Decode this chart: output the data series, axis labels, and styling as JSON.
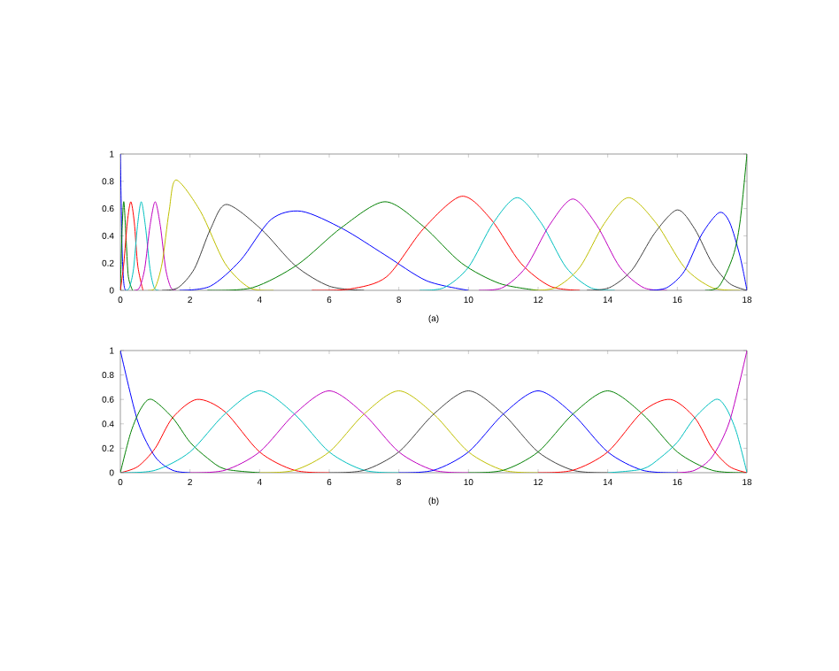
{
  "chart_data": [
    {
      "type": "line",
      "xlabel": "(a)",
      "xlim": [
        0,
        18
      ],
      "ylim": [
        0,
        1
      ],
      "xticks": [
        0,
        2,
        4,
        6,
        8,
        10,
        12,
        14,
        16,
        18
      ],
      "yticks": [
        0,
        0.2,
        0.4,
        0.6,
        0.8,
        1
      ],
      "series": [
        {
          "color": "#0000ff",
          "x": [
            0,
            0.05,
            0.1,
            0.15
          ],
          "values": [
            1,
            0.3,
            0.05,
            0
          ]
        },
        {
          "color": "#008000",
          "x": [
            0,
            0.05,
            0.1,
            0.17,
            0.23,
            0.35
          ],
          "values": [
            0,
            0.45,
            0.65,
            0.35,
            0.1,
            0
          ]
        },
        {
          "color": "#ff0000",
          "x": [
            0,
            0.1,
            0.2,
            0.3,
            0.4,
            0.5,
            0.65
          ],
          "values": [
            0,
            0.2,
            0.5,
            0.65,
            0.5,
            0.18,
            0
          ]
        },
        {
          "color": "#00bfbf",
          "x": [
            0.15,
            0.26,
            0.38,
            0.49,
            0.6,
            0.72,
            0.85,
            0.97,
            1.1
          ],
          "values": [
            0,
            0.02,
            0.16,
            0.47,
            0.65,
            0.47,
            0.16,
            0.02,
            0
          ]
        },
        {
          "color": "#bf00bf",
          "x": [
            0.4,
            0.55,
            0.7,
            0.85,
            1.0,
            1.15,
            1.3,
            1.45,
            1.6
          ],
          "values": [
            0,
            0.02,
            0.16,
            0.47,
            0.65,
            0.47,
            0.16,
            0.02,
            0
          ]
        },
        {
          "color": "#bfbf00",
          "x": [
            0.8,
            1.0,
            1.2,
            1.4,
            1.6,
            2.3,
            3.0,
            3.7,
            4.4
          ],
          "values": [
            0,
            0.02,
            0.2,
            0.58,
            0.81,
            0.58,
            0.2,
            0.02,
            0
          ]
        },
        {
          "color": "#404040",
          "x": [
            1.2,
            1.66,
            2.13,
            2.59,
            3.05,
            4.04,
            5.03,
            6.01,
            7.0
          ],
          "values": [
            0,
            0.02,
            0.16,
            0.45,
            0.63,
            0.45,
            0.18,
            0.03,
            0
          ]
        },
        {
          "color": "#0000ff",
          "x": [
            1.7,
            2.58,
            3.45,
            4.33,
            5.2,
            6.4,
            7.6,
            8.8,
            10
          ],
          "values": [
            0,
            0.03,
            0.22,
            0.52,
            0.58,
            0.45,
            0.26,
            0.07,
            0
          ]
        },
        {
          "color": "#008000",
          "x": [
            2.5,
            3.8,
            5.1,
            6.35,
            7.6,
            8.7,
            9.8,
            10.9,
            12
          ],
          "values": [
            0,
            0.02,
            0.19,
            0.46,
            0.65,
            0.47,
            0.2,
            0.05,
            0
          ]
        },
        {
          "color": "#ff0000",
          "x": [
            5.5,
            6.6,
            7.65,
            8.7,
            9.8,
            10.65,
            11.5,
            12.35,
            13.2
          ],
          "values": [
            0,
            0.01,
            0.1,
            0.45,
            0.69,
            0.52,
            0.2,
            0.03,
            0
          ]
        },
        {
          "color": "#00bfbf",
          "x": [
            8.6,
            9.3,
            10.0,
            10.7,
            11.4,
            12.1,
            12.8,
            13.5,
            14.2
          ],
          "values": [
            0,
            0.02,
            0.17,
            0.49,
            0.68,
            0.49,
            0.17,
            0.02,
            0
          ]
        },
        {
          "color": "#bf00bf",
          "x": [
            10.3,
            10.98,
            11.65,
            12.33,
            13,
            13.68,
            14.35,
            15.03,
            15.7
          ],
          "values": [
            0,
            0.02,
            0.17,
            0.48,
            0.67,
            0.48,
            0.17,
            0.02,
            0
          ]
        },
        {
          "color": "#bfbf00",
          "x": [
            11.8,
            12.5,
            13.2,
            13.9,
            14.6,
            15.4,
            16.2,
            17.0,
            17.8
          ],
          "values": [
            0,
            0.02,
            0.17,
            0.49,
            0.68,
            0.49,
            0.17,
            0.02,
            0
          ]
        },
        {
          "color": "#404040",
          "x": [
            13.4,
            14.05,
            14.7,
            15.35,
            16,
            16.5,
            17,
            17.5,
            18
          ],
          "values": [
            0,
            0.02,
            0.15,
            0.42,
            0.59,
            0.45,
            0.2,
            0.05,
            0
          ]
        },
        {
          "color": "#0000ff",
          "x": [
            15.2,
            15.7,
            16.2,
            16.7,
            17.2,
            17.5,
            17.8,
            18
          ],
          "values": [
            0,
            0.02,
            0.14,
            0.41,
            0.57,
            0.5,
            0.25,
            0
          ]
        },
        {
          "color": "#008000",
          "x": [
            16.8,
            17.2,
            17.6,
            17.8,
            18
          ],
          "values": [
            0,
            0.03,
            0.25,
            0.5,
            1
          ]
        }
      ]
    },
    {
      "type": "line",
      "xlabel": "(b)",
      "xlim": [
        0,
        18
      ],
      "ylim": [
        0,
        1
      ],
      "xticks": [
        0,
        2,
        4,
        6,
        8,
        10,
        12,
        14,
        16,
        18
      ],
      "yticks": [
        0,
        0.2,
        0.4,
        0.6,
        0.8,
        1
      ],
      "series": [
        {
          "color": "#0000ff",
          "x": [
            0,
            0.5,
            1,
            1.5,
            2
          ],
          "values": [
            1,
            0.42,
            0.13,
            0.02,
            0
          ]
        },
        {
          "color": "#008000",
          "x": [
            0,
            0.3,
            0.6,
            0.9,
            1.5,
            2,
            2.5,
            3,
            4
          ],
          "values": [
            0,
            0.33,
            0.53,
            0.6,
            0.45,
            0.25,
            0.12,
            0.03,
            0
          ]
        },
        {
          "color": "#ff0000",
          "x": [
            0,
            0.5,
            1,
            1.5,
            2.2,
            3,
            4,
            5,
            6
          ],
          "values": [
            0,
            0.05,
            0.2,
            0.45,
            0.6,
            0.5,
            0.17,
            0.02,
            0
          ]
        },
        {
          "color": "#00bfbf",
          "x": [
            0,
            1,
            2,
            3,
            4,
            5,
            6,
            7,
            8
          ],
          "values": [
            0,
            0.02,
            0.17,
            0.48,
            0.67,
            0.48,
            0.17,
            0.02,
            0
          ]
        },
        {
          "color": "#bf00bf",
          "x": [
            2,
            3,
            4,
            5,
            6,
            7,
            8,
            9,
            10
          ],
          "values": [
            0,
            0.02,
            0.17,
            0.48,
            0.67,
            0.48,
            0.17,
            0.02,
            0
          ]
        },
        {
          "color": "#bfbf00",
          "x": [
            4,
            5,
            6,
            7,
            8,
            9,
            10,
            11,
            12
          ],
          "values": [
            0,
            0.02,
            0.17,
            0.48,
            0.67,
            0.48,
            0.17,
            0.02,
            0
          ]
        },
        {
          "color": "#404040",
          "x": [
            6,
            7,
            8,
            9,
            10,
            11,
            12,
            13,
            14
          ],
          "values": [
            0,
            0.02,
            0.17,
            0.48,
            0.67,
            0.48,
            0.17,
            0.02,
            0
          ]
        },
        {
          "color": "#0000ff",
          "x": [
            8,
            9,
            10,
            11,
            12,
            13,
            14,
            15,
            16
          ],
          "values": [
            0,
            0.02,
            0.17,
            0.48,
            0.67,
            0.48,
            0.17,
            0.02,
            0
          ]
        },
        {
          "color": "#008000",
          "x": [
            10,
            11,
            12,
            13,
            14,
            15,
            16,
            17,
            18
          ],
          "values": [
            0,
            0.02,
            0.17,
            0.48,
            0.67,
            0.48,
            0.17,
            0.02,
            0
          ]
        },
        {
          "color": "#ff0000",
          "x": [
            12,
            13,
            14,
            15,
            15.8,
            16.5,
            17,
            17.5,
            18
          ],
          "values": [
            0,
            0.02,
            0.17,
            0.5,
            0.6,
            0.45,
            0.2,
            0.05,
            0
          ]
        },
        {
          "color": "#00bfbf",
          "x": [
            14,
            15,
            15.5,
            16,
            16.5,
            17.1,
            17.4,
            17.7,
            18
          ],
          "values": [
            0,
            0.03,
            0.12,
            0.25,
            0.45,
            0.6,
            0.53,
            0.33,
            0
          ]
        },
        {
          "color": "#bf00bf",
          "x": [
            16,
            16.5,
            17,
            17.5,
            18
          ],
          "values": [
            0,
            0.02,
            0.13,
            0.42,
            1
          ]
        }
      ]
    }
  ]
}
